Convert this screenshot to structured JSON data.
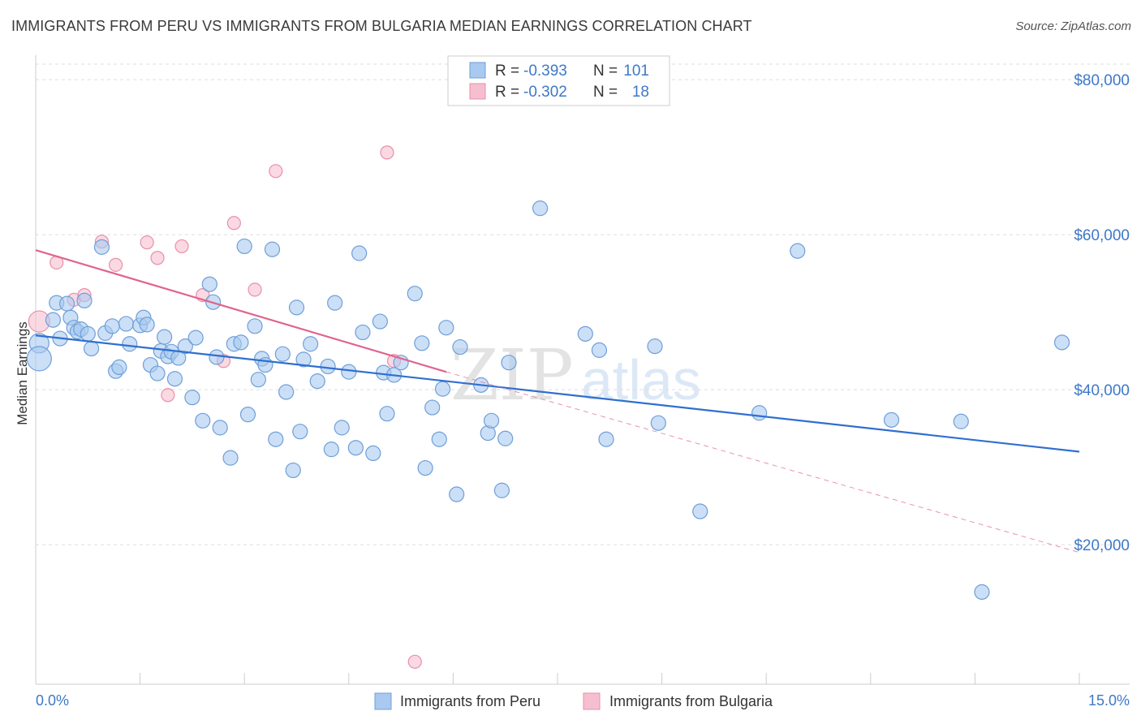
{
  "title": "IMMIGRANTS FROM PERU VS IMMIGRANTS FROM BULGARIA MEDIAN EARNINGS CORRELATION CHART",
  "source": "Source: ZipAtlas.com",
  "watermark": {
    "zip": "ZIP",
    "atlas": "atlas"
  },
  "colors": {
    "peru_fill": "#a9c9f0",
    "peru_stroke": "#6f9fd8",
    "peru_line": "#2f6fd0",
    "bulgaria_fill": "#f6bfd0",
    "bulgaria_stroke": "#e88fab",
    "bulgaria_line": "#e0648c",
    "grid": "#dddddd",
    "tick_text": "#3d78c9"
  },
  "legend": {
    "rows": [
      {
        "r_label": "R =",
        "r_value": "-0.393",
        "n_label": "N =",
        "n_value": "101"
      },
      {
        "r_label": "R =",
        "r_value": "-0.302",
        "n_label": "N =",
        "n_value": "18"
      }
    ]
  },
  "chart_data": {
    "type": "scatter",
    "title": "IMMIGRANTS FROM PERU VS IMMIGRANTS FROM BULGARIA MEDIAN EARNINGS CORRELATION CHART",
    "xlabel": "",
    "ylabel": "Median Earnings",
    "xlim": [
      0,
      15
    ],
    "ylim": [
      2000,
      82000
    ],
    "x_tick_labels": [
      "0.0%",
      "15.0%"
    ],
    "y_ticks": [
      20000,
      40000,
      60000,
      80000
    ],
    "y_tick_labels": [
      "$20,000",
      "$40,000",
      "$60,000",
      "$80,000"
    ],
    "grid": true,
    "legend_position": "top-center",
    "series": [
      {
        "name": "Immigrants from Peru",
        "points": [
          [
            0.05,
            46000
          ],
          [
            0.05,
            44000
          ],
          [
            0.25,
            49000
          ],
          [
            0.3,
            51200
          ],
          [
            0.35,
            46600
          ],
          [
            0.45,
            51100
          ],
          [
            0.5,
            49300
          ],
          [
            0.55,
            48000
          ],
          [
            0.6,
            47500
          ],
          [
            0.65,
            47800
          ],
          [
            0.7,
            51500
          ],
          [
            0.75,
            47200
          ],
          [
            0.8,
            45300
          ],
          [
            0.95,
            58400
          ],
          [
            1.0,
            47300
          ],
          [
            1.1,
            48200
          ],
          [
            1.15,
            42400
          ],
          [
            1.2,
            42900
          ],
          [
            1.3,
            48500
          ],
          [
            1.35,
            45900
          ],
          [
            1.5,
            48300
          ],
          [
            1.55,
            49300
          ],
          [
            1.6,
            48400
          ],
          [
            1.65,
            43200
          ],
          [
            1.75,
            42100
          ],
          [
            1.8,
            45000
          ],
          [
            1.85,
            46800
          ],
          [
            1.9,
            44300
          ],
          [
            1.95,
            44900
          ],
          [
            2.0,
            41400
          ],
          [
            2.05,
            44100
          ],
          [
            2.15,
            45600
          ],
          [
            2.25,
            39000
          ],
          [
            2.3,
            46700
          ],
          [
            2.4,
            36000
          ],
          [
            2.5,
            53600
          ],
          [
            2.55,
            51300
          ],
          [
            2.6,
            44200
          ],
          [
            2.65,
            35100
          ],
          [
            2.8,
            31200
          ],
          [
            2.85,
            45900
          ],
          [
            2.95,
            46100
          ],
          [
            3.0,
            58500
          ],
          [
            3.05,
            36800
          ],
          [
            3.15,
            48200
          ],
          [
            3.2,
            41300
          ],
          [
            3.25,
            44000
          ],
          [
            3.3,
            43200
          ],
          [
            3.4,
            58100
          ],
          [
            3.45,
            33600
          ],
          [
            3.55,
            44600
          ],
          [
            3.6,
            39700
          ],
          [
            3.7,
            29600
          ],
          [
            3.75,
            50600
          ],
          [
            3.8,
            34600
          ],
          [
            3.85,
            43900
          ],
          [
            3.95,
            45900
          ],
          [
            4.05,
            41100
          ],
          [
            4.2,
            43000
          ],
          [
            4.25,
            32300
          ],
          [
            4.3,
            51200
          ],
          [
            4.4,
            35100
          ],
          [
            4.5,
            42300
          ],
          [
            4.6,
            32500
          ],
          [
            4.65,
            57600
          ],
          [
            4.7,
            47400
          ],
          [
            4.85,
            31800
          ],
          [
            4.95,
            48800
          ],
          [
            5.0,
            42200
          ],
          [
            5.05,
            36900
          ],
          [
            5.15,
            41900
          ],
          [
            5.25,
            43500
          ],
          [
            5.45,
            52400
          ],
          [
            5.55,
            46000
          ],
          [
            5.6,
            29900
          ],
          [
            5.7,
            37700
          ],
          [
            5.8,
            33600
          ],
          [
            5.85,
            40100
          ],
          [
            5.9,
            48000
          ],
          [
            6.05,
            26500
          ],
          [
            6.1,
            45500
          ],
          [
            6.4,
            40600
          ],
          [
            6.5,
            34400
          ],
          [
            6.55,
            36000
          ],
          [
            6.7,
            27000
          ],
          [
            6.75,
            33700
          ],
          [
            6.8,
            43500
          ],
          [
            7.25,
            63400
          ],
          [
            7.9,
            47200
          ],
          [
            8.1,
            45100
          ],
          [
            8.2,
            33600
          ],
          [
            8.9,
            45600
          ],
          [
            8.95,
            35700
          ],
          [
            9.55,
            24300
          ],
          [
            10.4,
            37000
          ],
          [
            10.95,
            57900
          ],
          [
            12.3,
            36100
          ],
          [
            13.3,
            35900
          ],
          [
            13.6,
            13900
          ],
          [
            14.75,
            46100
          ]
        ],
        "trend": {
          "x": [
            0,
            15
          ],
          "y": [
            47000,
            32000
          ]
        }
      },
      {
        "name": "Immigrants from Bulgaria",
        "points": [
          [
            0.05,
            48800
          ],
          [
            0.3,
            56400
          ],
          [
            0.55,
            51600
          ],
          [
            0.7,
            52200
          ],
          [
            0.95,
            59100
          ],
          [
            1.15,
            56100
          ],
          [
            1.6,
            59000
          ],
          [
            1.75,
            57000
          ],
          [
            1.9,
            39300
          ],
          [
            2.1,
            58500
          ],
          [
            2.4,
            52200
          ],
          [
            2.7,
            43700
          ],
          [
            2.85,
            61500
          ],
          [
            3.15,
            52900
          ],
          [
            3.45,
            68200
          ],
          [
            5.05,
            70600
          ],
          [
            5.15,
            43700
          ],
          [
            5.45,
            4900
          ]
        ],
        "trend": {
          "x": [
            0,
            5.9
          ],
          "y": [
            58000,
            42300
          ]
        },
        "trend_extension": {
          "x": [
            5.9,
            15
          ],
          "y": [
            42300,
            19000
          ]
        }
      }
    ]
  },
  "bottom_legend": {
    "peru": "Immigrants from Peru",
    "bulgaria": "Immigrants from Bulgaria"
  }
}
